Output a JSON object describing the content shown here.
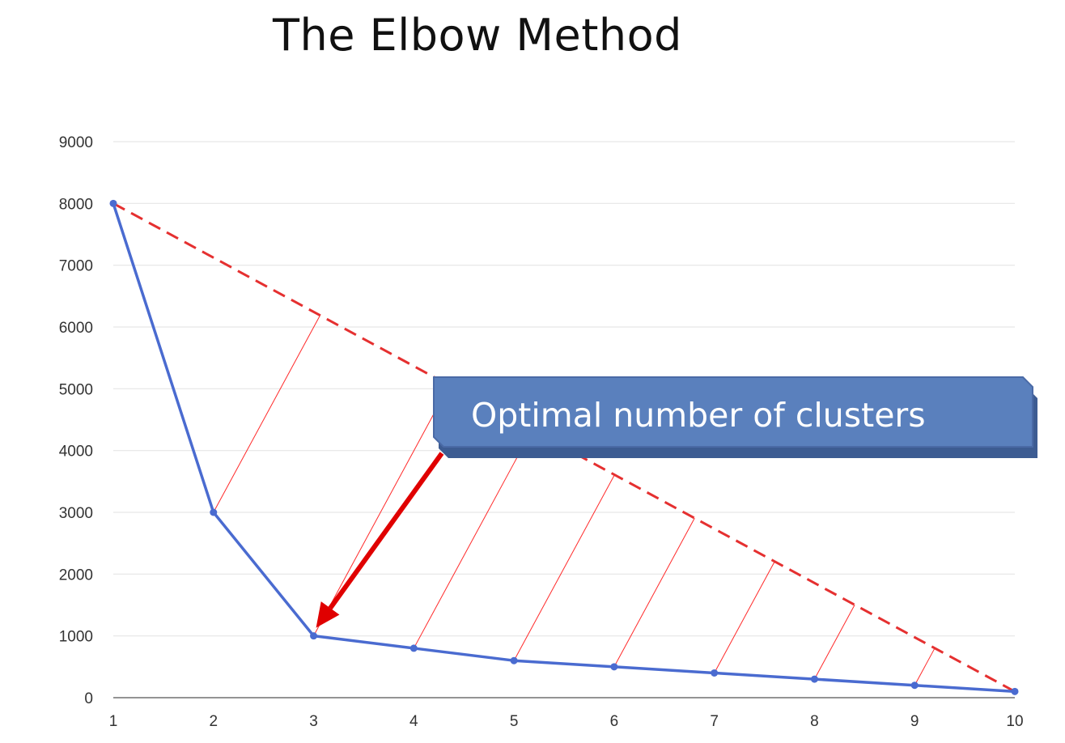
{
  "title": "The Elbow Method",
  "chart_data": {
    "type": "line",
    "x": [
      1,
      2,
      3,
      4,
      5,
      6,
      7,
      8,
      9,
      10
    ],
    "series": [
      {
        "values": [
          8000,
          3000,
          1000,
          800,
          600,
          500,
          400,
          300,
          200,
          100
        ]
      }
    ],
    "x_ticks": [
      "1",
      "2",
      "3",
      "4",
      "5",
      "6",
      "7",
      "8",
      "9",
      "10"
    ],
    "y_ticks": [
      "0",
      "1000",
      "2000",
      "3000",
      "4000",
      "5000",
      "6000",
      "7000",
      "8000",
      "9000"
    ],
    "ylim": [
      0,
      9000
    ],
    "grid": true,
    "reference_line": {
      "from": [
        1,
        8000
      ],
      "to": [
        10,
        100
      ],
      "style": "dashed"
    },
    "annotation": {
      "text": "Optimal number of clusters",
      "points_to_x": 3,
      "points_to_y": 1000
    },
    "colors": {
      "series": "#4a6bd0",
      "reference": "#e53030",
      "distance": "#ff2a2a",
      "arrow": "#e00000",
      "callout": "#5a80bd",
      "grid": "#e6e6e6"
    }
  }
}
